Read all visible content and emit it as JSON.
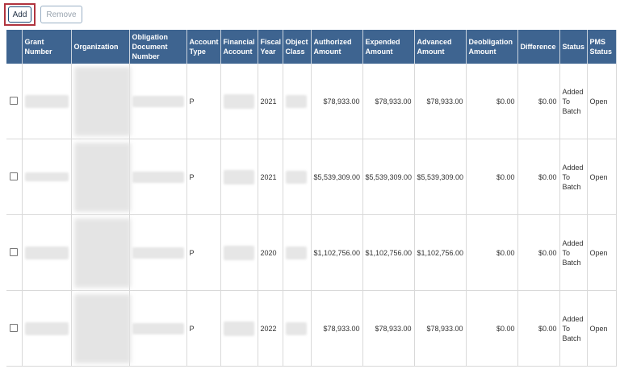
{
  "toolbar": {
    "add_label": "Add",
    "remove_label": "Remove"
  },
  "table": {
    "columns": [
      "",
      "Grant Number",
      "Organization",
      "Obligation Document Number",
      "Account Type",
      "Financial Account",
      "Fiscal Year",
      "Object Class",
      "Authorized Amount",
      "Expended Amount",
      "Advanced Amount",
      "Deobligation Amount",
      "Difference",
      "Status",
      "PMS Status"
    ],
    "rows": [
      {
        "account_type": "P",
        "fiscal_year": "2021",
        "authorized": "$78,933.00",
        "expended": "$78,933.00",
        "advanced": "$78,933.00",
        "deobligation": "$0.00",
        "difference": "$0.00",
        "status": "Added To Batch",
        "pms_status": "Open"
      },
      {
        "account_type": "P",
        "fiscal_year": "2021",
        "authorized": "$5,539,309.00",
        "expended": "$5,539,309.00",
        "advanced": "$5,539,309.00",
        "deobligation": "$0.00",
        "difference": "$0.00",
        "status": "Added To Batch",
        "pms_status": "Open"
      },
      {
        "account_type": "P",
        "fiscal_year": "2020",
        "authorized": "$1,102,756.00",
        "expended": "$1,102,756.00",
        "advanced": "$1,102,756.00",
        "deobligation": "$0.00",
        "difference": "$0.00",
        "status": "Added To Batch",
        "pms_status": "Open"
      },
      {
        "account_type": "P",
        "fiscal_year": "2022",
        "authorized": "$78,933.00",
        "expended": "$78,933.00",
        "advanced": "$78,933.00",
        "deobligation": "$0.00",
        "difference": "$0.00",
        "status": "Added To Batch",
        "pms_status": "Open"
      }
    ]
  },
  "colors": {
    "header_bg": "#3e6490",
    "add_highlight": "#b0343f"
  }
}
